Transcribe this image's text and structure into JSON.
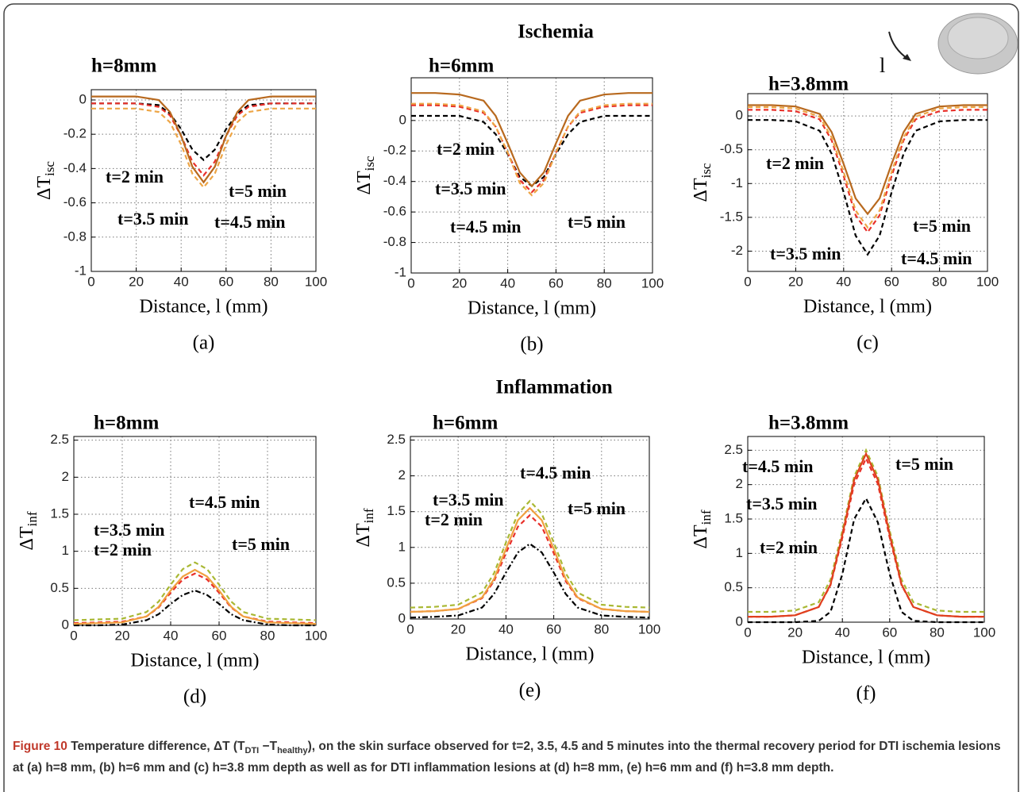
{
  "sections": [
    "Ischemia",
    "Inflammation"
  ],
  "icon_label": "l",
  "caption": {
    "label": "Figure 10",
    "parts": [
      " Temperature difference, ΔT (T",
      "DTI",
      " −T",
      "healthy",
      "), on the skin surface observed for t=2, 3.5, 4.5 and 5 minutes into the thermal recovery period for DTI ischemia lesions at (a) h=8 mm, (b) h=6 mm and (c) h=3.8 mm depth as well as for DTI inflammation lesions at (d) h=8 mm, (e) h=6 mm and (f) h=3.8 mm depth."
    ]
  },
  "chart_data": [
    {
      "type": "line",
      "title": "h=8mm",
      "panel_label": "(a)",
      "xlabel": "Distance, l (mm)",
      "ylabel": "ΔT",
      "ylabel_sub": "isc",
      "grid": true,
      "x": [
        0,
        10,
        20,
        30,
        35,
        40,
        45,
        50,
        55,
        60,
        65,
        70,
        80,
        90,
        100
      ],
      "xlim": [
        0,
        100
      ],
      "xticks": [
        0,
        20,
        40,
        60,
        80,
        100
      ],
      "ylim": [
        -1,
        0.06
      ],
      "yticks": [
        -1,
        -0.8,
        -0.6,
        -0.4,
        -0.2,
        0
      ],
      "series": [
        {
          "name": "t=2 min",
          "color": "#000000",
          "dash": "dashed",
          "values": [
            -0.02,
            -0.02,
            -0.02,
            -0.03,
            -0.08,
            -0.17,
            -0.29,
            -0.35,
            -0.29,
            -0.17,
            -0.08,
            -0.03,
            -0.02,
            -0.02,
            -0.02
          ]
        },
        {
          "name": "t=3.5 min",
          "color": "#e8302a",
          "dash": "dashed",
          "values": [
            -0.02,
            -0.02,
            -0.02,
            -0.04,
            -0.09,
            -0.21,
            -0.36,
            -0.44,
            -0.36,
            -0.21,
            -0.09,
            -0.04,
            -0.02,
            -0.02,
            -0.02
          ]
        },
        {
          "name": "t=4.5 min",
          "color": "#eda545",
          "dash": "dashed",
          "values": [
            -0.05,
            -0.05,
            -0.05,
            -0.07,
            -0.13,
            -0.26,
            -0.43,
            -0.51,
            -0.43,
            -0.26,
            -0.13,
            -0.07,
            -0.05,
            -0.05,
            -0.05
          ]
        },
        {
          "name": "t=5 min",
          "color": "#b8691e",
          "dash": "solid",
          "values": [
            0.02,
            0.02,
            0.02,
            0,
            -0.07,
            -0.21,
            -0.39,
            -0.48,
            -0.39,
            -0.21,
            -0.07,
            0,
            0.02,
            0.02,
            0.02
          ]
        }
      ]
    },
    {
      "type": "line",
      "title": "h=6mm",
      "panel_label": "(b)",
      "xlabel": "Distance, l (mm)",
      "ylabel": "ΔT",
      "ylabel_sub": "isc",
      "grid": true,
      "x": [
        0,
        10,
        20,
        30,
        35,
        40,
        45,
        50,
        55,
        60,
        65,
        70,
        80,
        90,
        100
      ],
      "xlim": [
        0,
        100
      ],
      "xticks": [
        0,
        20,
        40,
        60,
        80,
        100
      ],
      "ylim": [
        -1,
        0.28
      ],
      "yticks": [
        -1,
        -0.8,
        -0.6,
        -0.4,
        -0.2,
        0
      ],
      "series": [
        {
          "name": "t=2 min",
          "color": "#000000",
          "dash": "dashed",
          "values": [
            0.03,
            0.03,
            0.03,
            -0.01,
            -0.09,
            -0.22,
            -0.37,
            -0.43,
            -0.37,
            -0.22,
            -0.09,
            -0.01,
            0.03,
            0.03,
            0.03
          ]
        },
        {
          "name": "t=3.5 min",
          "color": "#e8302a",
          "dash": "dashed",
          "values": [
            0.1,
            0.1,
            0.09,
            0.05,
            -0.04,
            -0.21,
            -0.39,
            -0.47,
            -0.39,
            -0.21,
            -0.04,
            0.05,
            0.09,
            0.1,
            0.1
          ]
        },
        {
          "name": "t=4.5 min",
          "color": "#eda545",
          "dash": "dashed",
          "values": [
            0.11,
            0.11,
            0.1,
            0.06,
            -0.04,
            -0.21,
            -0.41,
            -0.49,
            -0.41,
            -0.21,
            -0.04,
            0.06,
            0.1,
            0.11,
            0.11
          ]
        },
        {
          "name": "t=5 min",
          "color": "#b8691e",
          "dash": "solid",
          "values": [
            0.18,
            0.18,
            0.17,
            0.13,
            0.03,
            -0.15,
            -0.34,
            -0.43,
            -0.34,
            -0.15,
            0.03,
            0.13,
            0.17,
            0.18,
            0.18
          ]
        }
      ]
    },
    {
      "type": "line",
      "title": "h=3.8mm",
      "panel_label": "(c)",
      "xlabel": "Distance, l (mm)",
      "ylabel": "ΔT",
      "ylabel_sub": "isc",
      "grid": true,
      "x": [
        0,
        10,
        20,
        30,
        35,
        40,
        45,
        50,
        55,
        60,
        65,
        70,
        80,
        90,
        100
      ],
      "xlim": [
        0,
        100
      ],
      "xticks": [
        0,
        20,
        40,
        60,
        80,
        100
      ],
      "ylim": [
        -2.3,
        0.33
      ],
      "yticks": [
        -2,
        -1.5,
        -1,
        -0.5,
        0
      ],
      "series": [
        {
          "name": "t=2 min",
          "color": "#000000",
          "dash": "dashed",
          "values": [
            -0.06,
            -0.06,
            -0.08,
            -0.22,
            -0.56,
            -1.13,
            -1.77,
            -2.05,
            -1.77,
            -1.13,
            -0.56,
            -0.22,
            -0.08,
            -0.06,
            -0.06
          ]
        },
        {
          "name": "t=3.5 min",
          "color": "#e8302a",
          "dash": "dashed",
          "values": [
            0.09,
            0.09,
            0.07,
            -0.05,
            -0.36,
            -0.89,
            -1.47,
            -1.72,
            -1.47,
            -0.89,
            -0.36,
            -0.05,
            0.07,
            0.09,
            0.09
          ]
        },
        {
          "name": "t=4.5 min",
          "color": "#eda545",
          "dash": "dashed",
          "values": [
            0.13,
            0.13,
            0.11,
            -0.01,
            -0.32,
            -0.83,
            -1.4,
            -1.65,
            -1.4,
            -0.83,
            -0.32,
            -0.01,
            0.11,
            0.13,
            0.13
          ]
        },
        {
          "name": "t=5 min",
          "color": "#b8691e",
          "dash": "solid",
          "values": [
            0.16,
            0.16,
            0.14,
            0.03,
            -0.24,
            -0.71,
            -1.22,
            -1.45,
            -1.22,
            -0.71,
            -0.24,
            0.03,
            0.14,
            0.16,
            0.16
          ]
        }
      ]
    },
    {
      "type": "line",
      "title": "h=8mm",
      "panel_label": "(d)",
      "xlabel": "Distance, l (mm)",
      "ylabel": "ΔT",
      "ylabel_sub": "inf",
      "grid": true,
      "x": [
        0,
        10,
        20,
        30,
        35,
        40,
        45,
        50,
        55,
        60,
        65,
        70,
        80,
        90,
        100
      ],
      "xlim": [
        0,
        100
      ],
      "xticks": [
        0,
        20,
        40,
        60,
        80,
        100
      ],
      "ylim": [
        0,
        2.55
      ],
      "yticks": [
        0,
        0.5,
        1,
        1.5,
        2,
        2.5
      ],
      "series": [
        {
          "name": "t=2 min",
          "color": "#000000",
          "dash": "dashdot",
          "values": [
            0,
            0,
            0.01,
            0.07,
            0.15,
            0.29,
            0.41,
            0.47,
            0.41,
            0.29,
            0.15,
            0.07,
            0.01,
            0,
            0
          ]
        },
        {
          "name": "t=3.5 min",
          "color": "#e8302a",
          "dash": "dashed",
          "values": [
            0.03,
            0.04,
            0.05,
            0.12,
            0.24,
            0.44,
            0.62,
            0.7,
            0.62,
            0.44,
            0.24,
            0.12,
            0.05,
            0.04,
            0.03
          ]
        },
        {
          "name": "t=4.5 min",
          "color": "#a9b833",
          "dash": "dashed",
          "values": [
            0.07,
            0.08,
            0.09,
            0.18,
            0.32,
            0.55,
            0.76,
            0.85,
            0.76,
            0.55,
            0.32,
            0.18,
            0.09,
            0.08,
            0.07
          ]
        },
        {
          "name": "t=5 min",
          "color": "#f0a040",
          "dash": "solid",
          "values": [
            0.02,
            0.03,
            0.04,
            0.12,
            0.25,
            0.47,
            0.66,
            0.75,
            0.66,
            0.47,
            0.25,
            0.12,
            0.04,
            0.03,
            0.02
          ]
        }
      ]
    },
    {
      "type": "line",
      "title": "h=6mm",
      "panel_label": "(e)",
      "xlabel": "Distance, l (mm)",
      "ylabel": "ΔT",
      "ylabel_sub": "inf",
      "grid": true,
      "x": [
        0,
        10,
        20,
        30,
        35,
        40,
        45,
        50,
        55,
        60,
        65,
        70,
        80,
        90,
        100
      ],
      "xlim": [
        0,
        100
      ],
      "xticks": [
        0,
        20,
        40,
        60,
        80,
        100
      ],
      "ylim": [
        0,
        2.55
      ],
      "yticks": [
        0,
        0.5,
        1,
        1.5,
        2,
        2.5
      ],
      "series": [
        {
          "name": "t=2 min",
          "color": "#000000",
          "dash": "dashdot",
          "values": [
            0.02,
            0.03,
            0.05,
            0.16,
            0.35,
            0.65,
            0.93,
            1.05,
            0.93,
            0.65,
            0.35,
            0.16,
            0.05,
            0.03,
            0.02
          ]
        },
        {
          "name": "t=3.5 min",
          "color": "#e8302a",
          "dash": "dashed",
          "values": [
            0.1,
            0.11,
            0.14,
            0.29,
            0.53,
            0.92,
            1.29,
            1.45,
            1.29,
            0.92,
            0.53,
            0.29,
            0.14,
            0.11,
            0.1
          ]
        },
        {
          "name": "t=4.5 min",
          "color": "#a9b833",
          "dash": "dashed",
          "values": [
            0.16,
            0.17,
            0.2,
            0.37,
            0.64,
            1.07,
            1.47,
            1.65,
            1.47,
            1.07,
            0.64,
            0.37,
            0.2,
            0.17,
            0.16
          ]
        },
        {
          "name": "t=5 min",
          "color": "#f0a040",
          "dash": "solid",
          "values": [
            0.1,
            0.11,
            0.14,
            0.3,
            0.56,
            0.98,
            1.38,
            1.55,
            1.38,
            0.98,
            0.56,
            0.3,
            0.14,
            0.11,
            0.1
          ]
        }
      ]
    },
    {
      "type": "line",
      "title": "h=3.8mm",
      "panel_label": "(f)",
      "xlabel": "Distance, l (mm)",
      "ylabel": "ΔT",
      "ylabel_sub": "inf",
      "grid": true,
      "x": [
        0,
        10,
        20,
        30,
        35,
        40,
        45,
        50,
        55,
        60,
        65,
        70,
        80,
        90,
        100
      ],
      "xlim": [
        0,
        100
      ],
      "xticks": [
        0,
        20,
        40,
        60,
        80,
        100
      ],
      "ylim": [
        0,
        2.7
      ],
      "yticks": [
        0,
        0.5,
        1,
        1.5,
        2,
        2.5
      ],
      "series": [
        {
          "name": "t=2 min",
          "color": "#000000",
          "dash": "dashed",
          "values": [
            0,
            0,
            0,
            0.02,
            0.15,
            0.7,
            1.5,
            1.8,
            1.45,
            0.7,
            0.15,
            0.02,
            0,
            0,
            0
          ]
        },
        {
          "name": "t=3.5 min",
          "color": "#e8302a",
          "dash": "dashed",
          "values": [
            0.08,
            0.08,
            0.1,
            0.22,
            0.54,
            1.23,
            2.01,
            2.38,
            2.01,
            1.23,
            0.54,
            0.22,
            0.1,
            0.08,
            0.08
          ]
        },
        {
          "name": "t=4.5 min",
          "color": "#a9b833",
          "dash": "dashed",
          "values": [
            0.15,
            0.15,
            0.17,
            0.29,
            0.62,
            1.33,
            2.12,
            2.5,
            2.12,
            1.33,
            0.62,
            0.29,
            0.17,
            0.15,
            0.15
          ]
        },
        {
          "name": "t=5 min",
          "color": "#e0401e",
          "dash": "solid",
          "values": [
            0.08,
            0.08,
            0.1,
            0.22,
            0.55,
            1.27,
            2.07,
            2.45,
            2.07,
            1.27,
            0.55,
            0.22,
            0.1,
            0.08,
            0.08
          ]
        }
      ]
    }
  ]
}
